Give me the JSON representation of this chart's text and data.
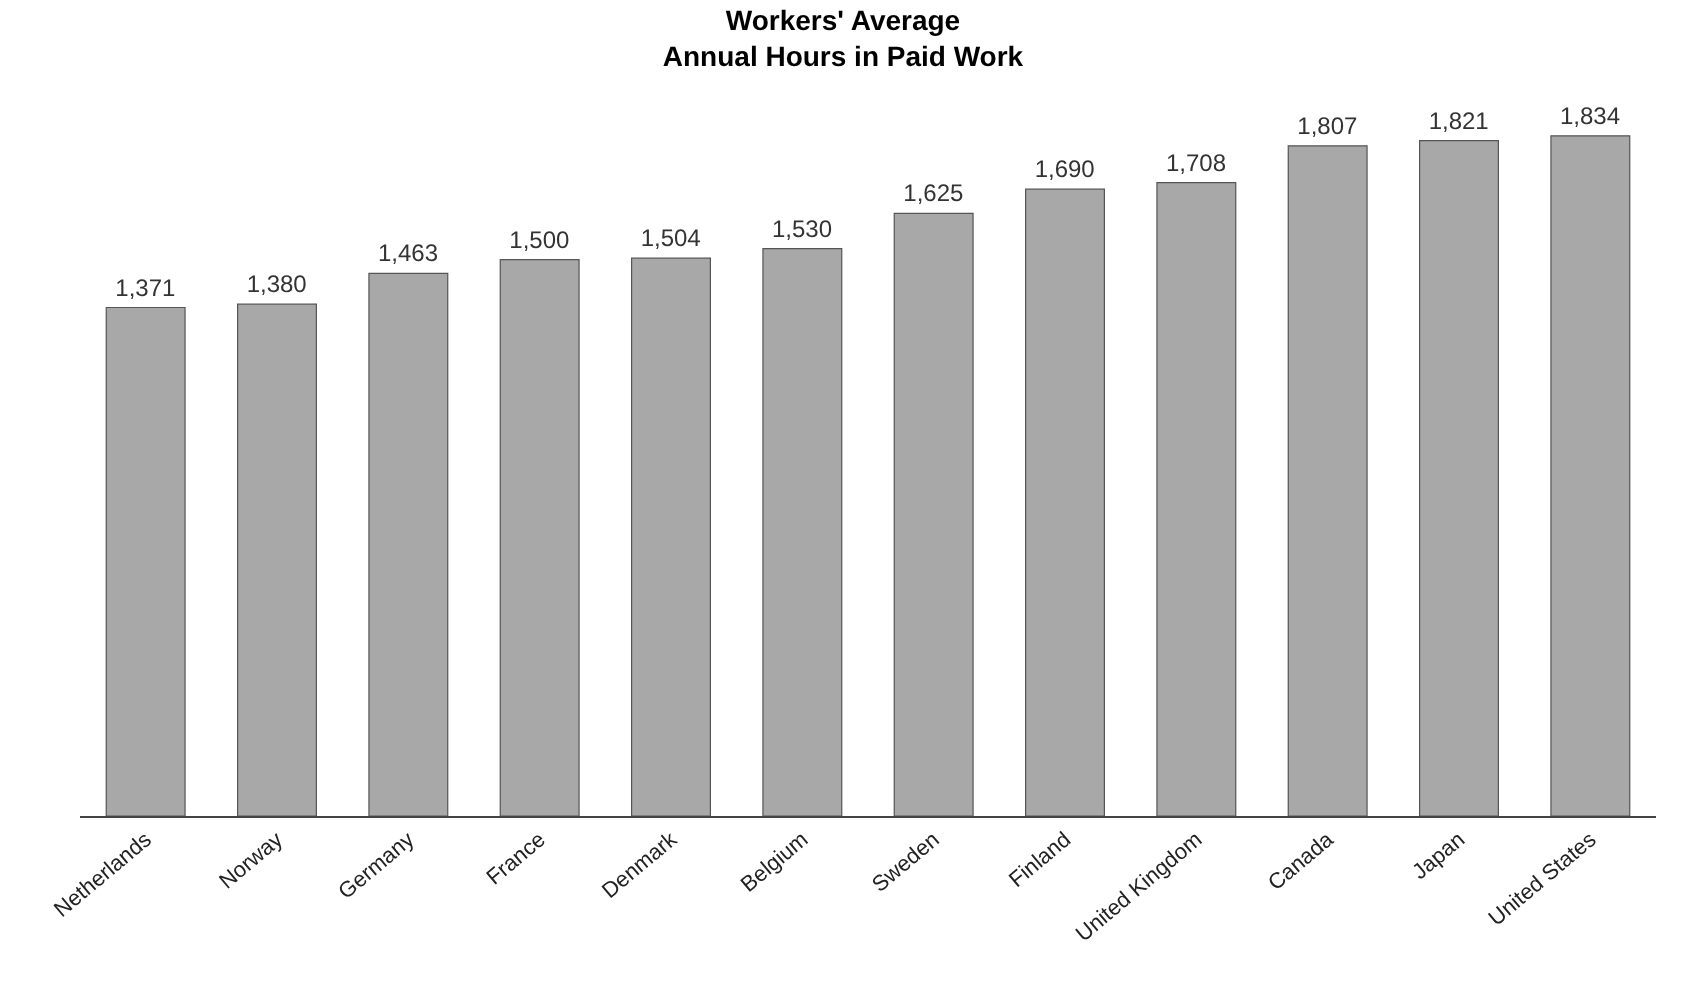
{
  "chart_data": {
    "type": "bar",
    "title": "Workers' Average\nAnnual Hours in Paid Work",
    "categories": [
      "Netherlands",
      "Norway",
      "Germany",
      "France",
      "Denmark",
      "Belgium",
      "Sweden",
      "Finland",
      "United Kingdom",
      "Canada",
      "Japan",
      "United States"
    ],
    "values": [
      1371,
      1380,
      1463,
      1500,
      1504,
      1530,
      1625,
      1690,
      1708,
      1807,
      1821,
      1834
    ],
    "value_labels": [
      "1,371",
      "1,380",
      "1,463",
      "1,500",
      "1,504",
      "1,530",
      "1,625",
      "1,690",
      "1,708",
      "1,807",
      "1,821",
      "1,834"
    ],
    "color": "#a8a8a8",
    "grid": false,
    "legend": false,
    "tick_labels": "x"
  }
}
